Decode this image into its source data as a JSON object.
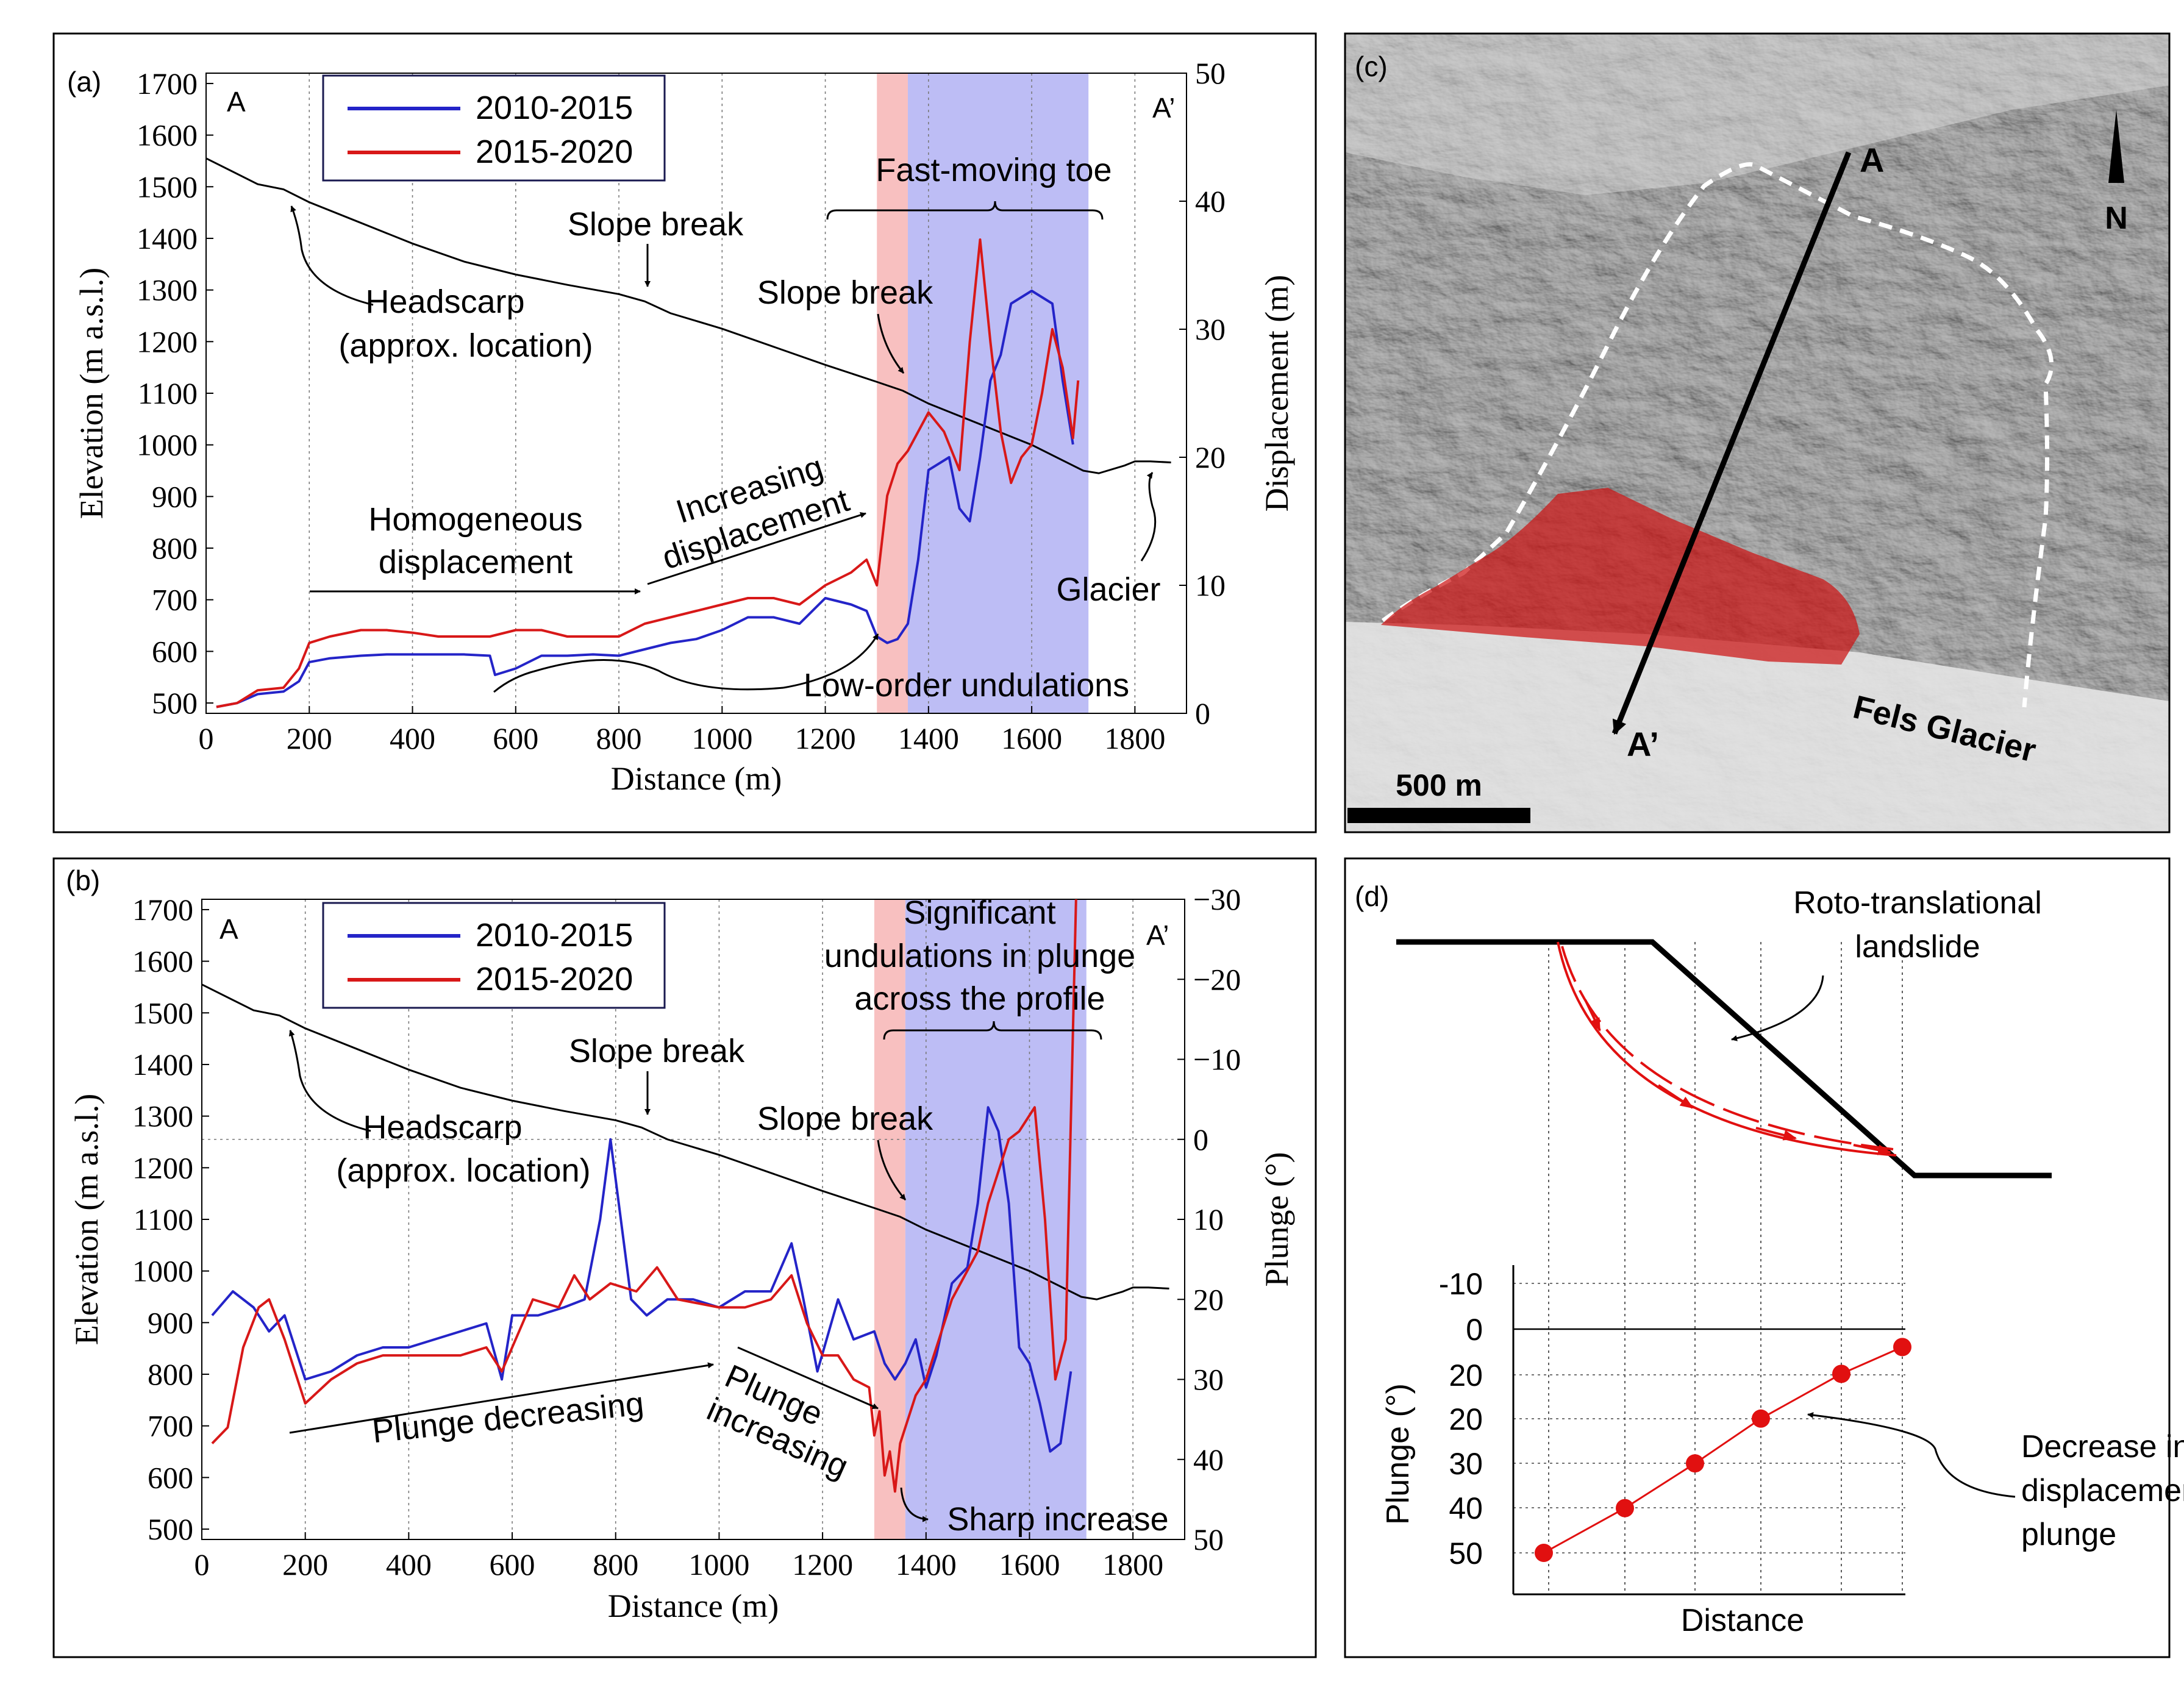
{
  "chart_data": [
    {
      "panel_label": "(a)",
      "type": "line",
      "xlabel": "Distance (m)",
      "ylabel": "Elevation (m a.s.l.)",
      "y2label": "Displacement (m)",
      "xlim": [
        0,
        1900
      ],
      "ylim": [
        480,
        1720
      ],
      "y2lim": [
        0,
        50
      ],
      "x_ticks": [
        "0",
        "200",
        "400",
        "600",
        "800",
        "1000",
        "1200",
        "1400",
        "1600",
        "1800"
      ],
      "y_ticks": [
        "500",
        "600",
        "700",
        "800",
        "900",
        "1000",
        "1100",
        "1200",
        "1300",
        "1400",
        "1500",
        "1600",
        "1700"
      ],
      "y2_ticks": [
        "0",
        "10",
        "20",
        "30",
        "40",
        "50"
      ],
      "profile_start": "A",
      "profile_end": "A’",
      "legend": [
        "2010-2015",
        "2015-2020"
      ],
      "bands": [
        {
          "x0": 1300,
          "x1": 1360,
          "color": "#f7b7b7"
        },
        {
          "x0": 1360,
          "x1": 1710,
          "color": "#b4b4f4"
        }
      ],
      "elevation": {
        "x": [
          0,
          100,
          150,
          200,
          300,
          400,
          500,
          600,
          700,
          800,
          850,
          900,
          1000,
          1100,
          1200,
          1300,
          1350,
          1400,
          1500,
          1600,
          1650,
          1700,
          1730,
          1780,
          1800,
          1830,
          1870
        ],
        "y": [
          1555,
          1505,
          1495,
          1470,
          1430,
          1390,
          1355,
          1330,
          1310,
          1292,
          1278,
          1255,
          1225,
          1190,
          1155,
          1122,
          1105,
          1080,
          1040,
          1000,
          975,
          950,
          945,
          960,
          968,
          968,
          966
        ]
      },
      "series": [
        {
          "name": "2010-2015",
          "color": "#2424c8",
          "x": [
            20,
            60,
            100,
            150,
            180,
            200,
            240,
            300,
            350,
            400,
            450,
            500,
            550,
            560,
            600,
            650,
            700,
            750,
            800,
            850,
            900,
            950,
            1000,
            1050,
            1100,
            1150,
            1200,
            1250,
            1280,
            1300,
            1320,
            1340,
            1360,
            1380,
            1400,
            1440,
            1460,
            1480,
            1500,
            1520,
            1540,
            1560,
            1600,
            1640,
            1660,
            1680
          ],
          "y": [
            0.5,
            0.8,
            1.5,
            1.7,
            2.5,
            4.0,
            4.3,
            4.5,
            4.6,
            4.6,
            4.6,
            4.6,
            4.5,
            3.0,
            3.5,
            4.5,
            4.5,
            4.6,
            4.5,
            5.0,
            5.5,
            5.8,
            6.5,
            7.5,
            7.5,
            7.0,
            9.0,
            8.5,
            8.0,
            6.0,
            5.5,
            5.8,
            7.0,
            12.0,
            19.0,
            20.0,
            16.0,
            15.0,
            20.0,
            26.0,
            28.0,
            32.0,
            33.0,
            32.0,
            26.0,
            21.0
          ]
        },
        {
          "name": "2015-2020",
          "color": "#d81818",
          "x": [
            20,
            60,
            100,
            150,
            180,
            200,
            240,
            300,
            350,
            400,
            450,
            500,
            550,
            600,
            650,
            700,
            750,
            800,
            850,
            900,
            950,
            1000,
            1050,
            1100,
            1150,
            1200,
            1250,
            1280,
            1300,
            1320,
            1340,
            1360,
            1380,
            1400,
            1430,
            1460,
            1480,
            1500,
            1520,
            1540,
            1560,
            1580,
            1600,
            1620,
            1640,
            1660,
            1680,
            1690
          ],
          "y": [
            0.5,
            0.8,
            1.8,
            2.0,
            3.5,
            5.5,
            6.0,
            6.5,
            6.5,
            6.3,
            6.0,
            6.0,
            6.0,
            6.5,
            6.5,
            6.0,
            6.0,
            6.0,
            7.0,
            7.5,
            8.0,
            8.5,
            9.0,
            9.0,
            8.5,
            10.0,
            11.0,
            12.0,
            10.0,
            17.0,
            19.5,
            20.5,
            22.0,
            23.5,
            22.0,
            19.0,
            29.0,
            37.0,
            29.0,
            22.0,
            18.0,
            20.0,
            21.0,
            25.0,
            30.0,
            27.0,
            21.5,
            26.0
          ]
        }
      ],
      "annotations": [
        "Fast-moving toe",
        "Slope break",
        "Slope break",
        "Headscarp",
        "(approx. location)",
        "Increasing",
        "displacement",
        "Homogeneous",
        "displacement",
        "Glacier",
        "Low-order undulations"
      ]
    },
    {
      "panel_label": "(b)",
      "type": "line",
      "xlabel": "Distance (m)",
      "ylabel": "Elevation (m a.s.l.)",
      "y2label": "Plunge (°)",
      "xlim": [
        0,
        1900
      ],
      "ylim": [
        480,
        1720
      ],
      "y2lim": [
        50,
        -30
      ],
      "x_ticks": [
        "0",
        "200",
        "400",
        "600",
        "800",
        "1000",
        "1200",
        "1400",
        "1600",
        "1800"
      ],
      "y_ticks": [
        "500",
        "600",
        "700",
        "800",
        "900",
        "1000",
        "1100",
        "1200",
        "1300",
        "1400",
        "1500",
        "1600",
        "1700"
      ],
      "y2_ticks": [
        "−30",
        "−20",
        "−10",
        "0",
        "10",
        "20",
        "30",
        "40",
        "50"
      ],
      "profile_start": "A",
      "profile_end": "A’",
      "legend": [
        "2010-2015",
        "2015-2020"
      ],
      "bands": [
        {
          "x0": 1300,
          "x1": 1360,
          "color": "#f7b7b7"
        },
        {
          "x0": 1360,
          "x1": 1710,
          "color": "#b4b4f4"
        }
      ],
      "elevation": {
        "x": [
          0,
          100,
          150,
          200,
          300,
          400,
          500,
          600,
          700,
          800,
          850,
          900,
          1000,
          1100,
          1200,
          1300,
          1350,
          1400,
          1500,
          1600,
          1650,
          1700,
          1730,
          1780,
          1800,
          1830,
          1870
        ],
        "y": [
          1555,
          1505,
          1495,
          1470,
          1430,
          1390,
          1355,
          1330,
          1310,
          1292,
          1278,
          1255,
          1225,
          1190,
          1155,
          1122,
          1105,
          1080,
          1040,
          1000,
          975,
          950,
          945,
          960,
          968,
          968,
          966
        ]
      },
      "series": [
        {
          "name": "2010-2015",
          "color": "#2424c8",
          "x": [
            20,
            60,
            100,
            130,
            160,
            200,
            250,
            300,
            350,
            400,
            450,
            500,
            550,
            580,
            600,
            650,
            700,
            740,
            770,
            790,
            810,
            830,
            860,
            900,
            950,
            1000,
            1050,
            1100,
            1140,
            1160,
            1190,
            1230,
            1260,
            1300,
            1320,
            1340,
            1360,
            1380,
            1400,
            1420,
            1450,
            1480,
            1500,
            1520,
            1540,
            1560,
            1580,
            1600,
            1620,
            1640,
            1660,
            1680
          ],
          "y": [
            22,
            19,
            21,
            24,
            22,
            30,
            29,
            27,
            26,
            26,
            25,
            24,
            23,
            30,
            22,
            22,
            21,
            20,
            10,
            0,
            10,
            20,
            22,
            20,
            20,
            21,
            19,
            19,
            13,
            19,
            29,
            20,
            25,
            24,
            28,
            30,
            28,
            25,
            31,
            27,
            18,
            16,
            8,
            -4,
            -1,
            8,
            26,
            28,
            33,
            39,
            38,
            29
          ]
        },
        {
          "name": "2015-2020",
          "color": "#d81818",
          "x": [
            20,
            50,
            80,
            110,
            130,
            160,
            200,
            250,
            300,
            350,
            400,
            450,
            500,
            550,
            580,
            600,
            640,
            690,
            720,
            750,
            790,
            840,
            880,
            920,
            1000,
            1050,
            1100,
            1140,
            1170,
            1200,
            1230,
            1260,
            1290,
            1300,
            1310,
            1320,
            1330,
            1340,
            1350,
            1360,
            1380,
            1400,
            1450,
            1500,
            1520,
            1540,
            1560,
            1580,
            1600,
            1610,
            1630,
            1650,
            1670,
            1690
          ],
          "y": [
            38,
            36,
            26,
            21,
            20,
            25,
            33,
            30,
            28,
            27,
            27,
            27,
            27,
            26,
            29,
            26,
            20,
            21,
            17,
            20,
            18,
            19,
            16,
            20,
            21,
            21,
            20,
            17,
            23,
            27,
            27,
            30,
            31,
            37,
            34,
            42,
            39,
            44,
            38,
            36,
            32,
            30,
            20,
            14,
            8,
            4,
            0,
            -1,
            -3,
            -4,
            10,
            30,
            25,
            -30
          ]
        }
      ],
      "annotations": [
        "Significant",
        "undulations in plunge",
        "across the profile",
        "Slope break",
        "Slope break",
        "Headscarp",
        "(approx. location)",
        "Plunge decreasing",
        "Plunge",
        "increasing",
        "Sharp increase"
      ]
    },
    {
      "panel_label": "(d)",
      "type": "scatter",
      "xlabel": "Distance",
      "ylabel": "Plunge (°)",
      "y_ticks": [
        "-10",
        "0",
        "20",
        "20",
        "30",
        "40",
        "50"
      ],
      "series": [
        {
          "name": "displacement plunge",
          "color": "#e11010",
          "x": [
            1,
            2,
            3,
            4,
            5,
            6
          ],
          "y": [
            50,
            40,
            30,
            20,
            10,
            4
          ]
        }
      ],
      "annotations": [
        "Roto-translational",
        "landslide",
        "Decrease in",
        "displacement",
        "plunge"
      ]
    }
  ],
  "map_panel": {
    "panel_label": "(c)",
    "profile_start": "A",
    "profile_end": "A’",
    "north_label": "N",
    "glacier_label": "Fels Glacier",
    "scale_label": "500 m"
  }
}
